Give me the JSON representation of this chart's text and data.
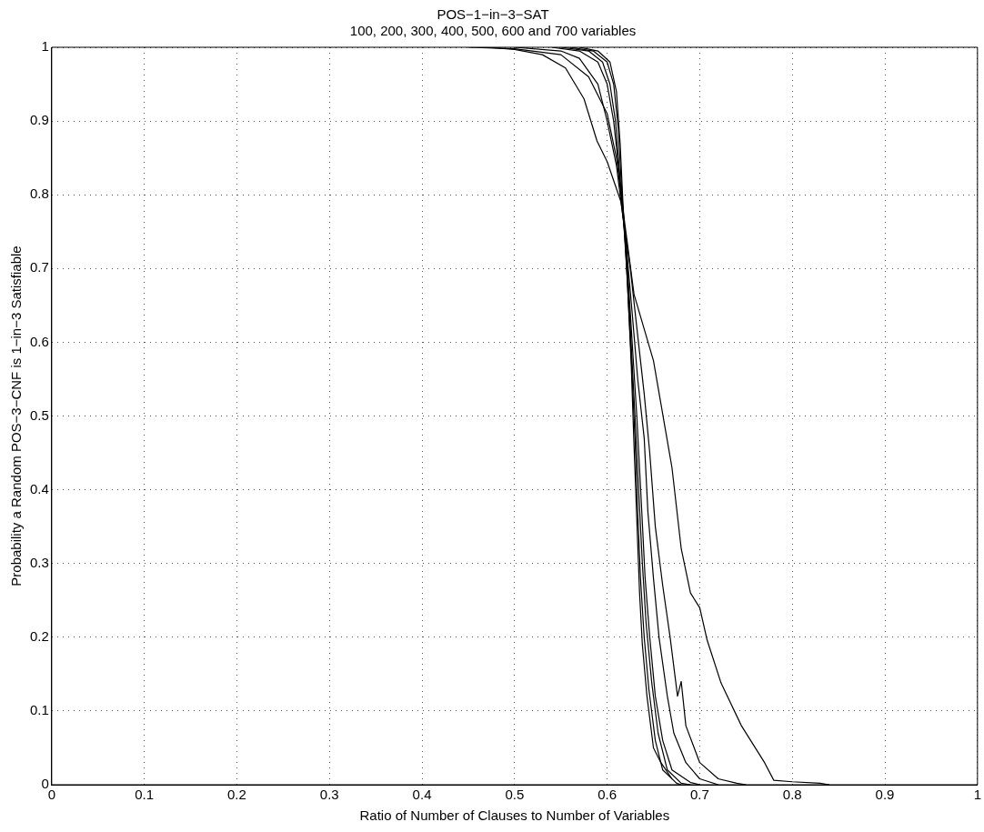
{
  "chart_data": {
    "type": "line",
    "title": "POS−1−in−3−SAT",
    "subtitle": "100, 200, 300, 400, 500, 600 and 700 variables",
    "xlabel": "Ratio of Number of Clauses to Number of Variables",
    "ylabel": "Probability a Random POS−3−CNF is 1−in−3 Satisfiable",
    "xlim": [
      0,
      1
    ],
    "ylim": [
      0,
      1
    ],
    "xticks": [
      0,
      0.1,
      0.2,
      0.3,
      0.4,
      0.5,
      0.6,
      0.7,
      0.8,
      0.9,
      1
    ],
    "yticks": [
      0,
      0.1,
      0.2,
      0.3,
      0.4,
      0.5,
      0.6,
      0.7,
      0.8,
      0.9,
      1
    ],
    "grid": true,
    "legend": false,
    "marker": "none",
    "line_style": "solid",
    "series": [
      {
        "color": "#000000",
        "x": [
          0.45,
          0.5,
          0.55,
          0.58,
          0.6,
          0.61,
          0.615,
          0.629,
          0.65,
          0.67,
          0.68,
          0.69,
          0.7,
          0.708,
          0.723,
          0.745,
          0.77,
          0.78,
          0.8,
          0.83,
          0.84
        ],
        "values": [
          1,
          0.998,
          0.99,
          0.96,
          0.91,
          0.85,
          0.8,
          0.665,
          0.575,
          0.43,
          0.32,
          0.26,
          0.24,
          0.196,
          0.138,
          0.08,
          0.03,
          0.006,
          0.004,
          0.002,
          0
        ]
      },
      {
        "color": "#000000",
        "x": [
          0.47,
          0.5,
          0.53,
          0.555,
          0.575,
          0.589,
          0.6,
          0.615,
          0.625,
          0.632,
          0.64,
          0.646,
          0.652,
          0.66,
          0.668,
          0.676,
          0.68,
          0.685,
          0.7,
          0.72,
          0.74,
          0.75
        ],
        "values": [
          1,
          0.997,
          0.99,
          0.972,
          0.93,
          0.873,
          0.845,
          0.79,
          0.7,
          0.62,
          0.53,
          0.45,
          0.35,
          0.27,
          0.2,
          0.12,
          0.14,
          0.08,
          0.03,
          0.008,
          0.002,
          0
        ]
      },
      {
        "color": "#000000",
        "x": [
          0.5,
          0.55,
          0.57,
          0.59,
          0.6,
          0.61,
          0.62,
          0.627,
          0.633,
          0.64,
          0.644,
          0.65,
          0.656,
          0.665,
          0.672,
          0.685,
          0.7,
          0.72
        ],
        "values": [
          1,
          0.995,
          0.985,
          0.95,
          0.9,
          0.84,
          0.74,
          0.64,
          0.55,
          0.47,
          0.37,
          0.28,
          0.2,
          0.12,
          0.07,
          0.03,
          0.008,
          0
        ]
      },
      {
        "color": "#000000",
        "x": [
          0.54,
          0.57,
          0.59,
          0.6,
          0.607,
          0.613,
          0.62,
          0.626,
          0.632,
          0.637,
          0.641,
          0.646,
          0.652,
          0.66,
          0.67,
          0.69,
          0.7
        ],
        "values": [
          1,
          0.995,
          0.98,
          0.95,
          0.9,
          0.83,
          0.74,
          0.62,
          0.5,
          0.38,
          0.28,
          0.2,
          0.12,
          0.06,
          0.02,
          0.003,
          0
        ]
      },
      {
        "color": "#000000",
        "x": [
          0.55,
          0.58,
          0.595,
          0.603,
          0.609,
          0.614,
          0.62,
          0.625,
          0.63,
          0.634,
          0.638,
          0.642,
          0.648,
          0.655,
          0.665,
          0.68,
          0.69
        ],
        "values": [
          1,
          0.995,
          0.98,
          0.95,
          0.9,
          0.82,
          0.73,
          0.62,
          0.5,
          0.4,
          0.3,
          0.22,
          0.14,
          0.07,
          0.02,
          0.002,
          0
        ]
      },
      {
        "color": "#000000",
        "x": [
          0.56,
          0.585,
          0.6,
          0.607,
          0.612,
          0.616,
          0.621,
          0.626,
          0.63,
          0.633,
          0.636,
          0.64,
          0.645,
          0.652,
          0.66,
          0.675,
          0.68
        ],
        "values": [
          1,
          0.995,
          0.98,
          0.95,
          0.89,
          0.8,
          0.7,
          0.58,
          0.47,
          0.37,
          0.28,
          0.2,
          0.13,
          0.06,
          0.02,
          0.002,
          0
        ]
      },
      {
        "color": "#000000",
        "x": [
          0.57,
          0.59,
          0.603,
          0.61,
          0.614,
          0.617,
          0.622,
          0.626,
          0.629,
          0.632,
          0.635,
          0.638,
          0.643,
          0.65,
          0.658,
          0.67
        ],
        "values": [
          1,
          0.995,
          0.98,
          0.94,
          0.87,
          0.79,
          0.68,
          0.57,
          0.46,
          0.36,
          0.26,
          0.19,
          0.12,
          0.05,
          0.03,
          0.008
        ]
      }
    ]
  }
}
